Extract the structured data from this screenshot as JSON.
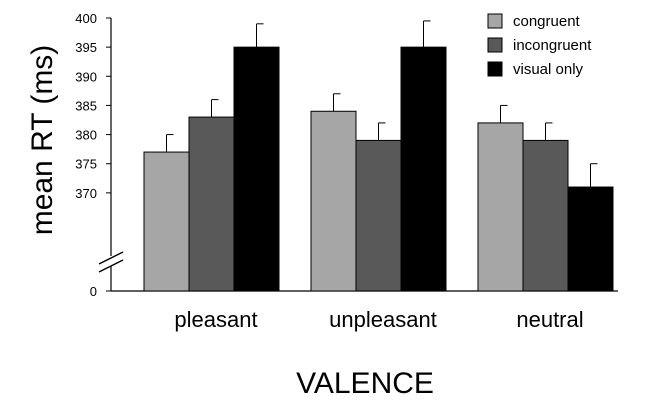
{
  "chart_data": {
    "type": "bar",
    "ylabel": "mean RT (ms)",
    "xlabel": "VALENCE",
    "categories": [
      "pleasant",
      "unpleasant",
      "neutral"
    ],
    "series": [
      {
        "name": "congruent",
        "color": "#a6a6a6",
        "values": [
          377,
          384,
          382
        ],
        "errors": [
          3,
          3,
          3
        ]
      },
      {
        "name": "incongruent",
        "color": "#595959",
        "values": [
          383,
          379,
          379
        ],
        "errors": [
          3,
          3,
          3
        ]
      },
      {
        "name": "visual only",
        "color": "#000000",
        "values": [
          395,
          395,
          371
        ],
        "errors": [
          4,
          4.5,
          4
        ]
      }
    ],
    "ylim": [
      365,
      400
    ],
    "yticks": [
      370,
      375,
      380,
      385,
      390,
      395,
      400
    ],
    "axis_break": true,
    "break_tick": 0,
    "grid": false,
    "legend_position": "top-right"
  }
}
